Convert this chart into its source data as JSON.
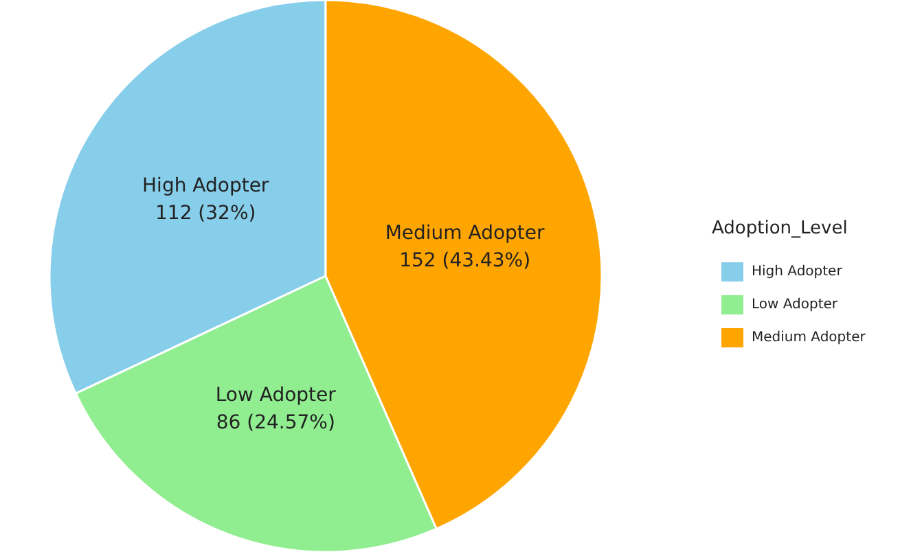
{
  "chart_data": {
    "type": "pie",
    "legend_title": "Adoption_Level",
    "legend": "right",
    "categories": [
      "High Adopter",
      "Low Adopter",
      "Medium Adopter"
    ],
    "values": [
      112,
      86,
      152
    ],
    "value_labels": [
      "112 (32%)",
      "86 (24.57%)",
      "152 (43.43%)"
    ],
    "colors": [
      "#87ceeb",
      "#90ee90",
      "#ffa500"
    ]
  }
}
